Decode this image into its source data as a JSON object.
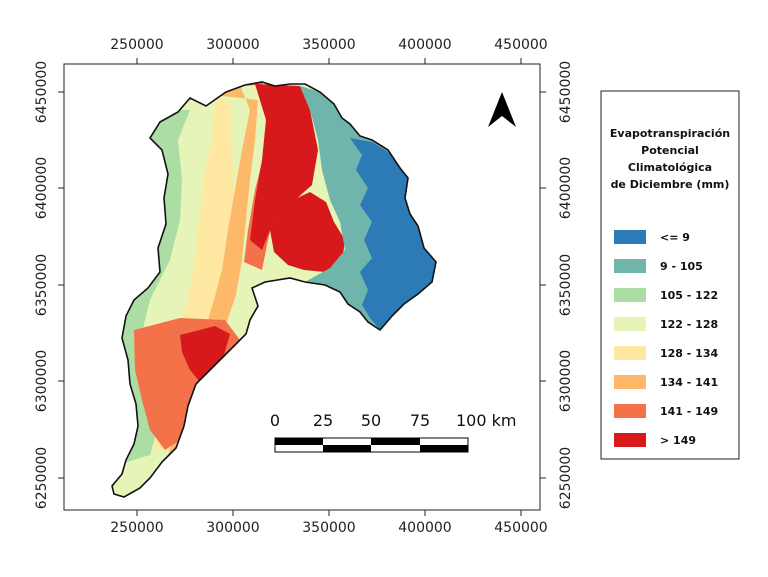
{
  "map": {
    "x_ticks": [
      "250000",
      "300000",
      "350000",
      "400000",
      "450000"
    ],
    "y_ticks": [
      "6450000",
      "6400000",
      "6350000",
      "6300000",
      "6250000"
    ],
    "north_arrow_icon": "north-arrow-icon"
  },
  "scale_bar": {
    "labels": [
      "0",
      "25",
      "50",
      "75",
      "100 km"
    ]
  },
  "legend": {
    "title_lines": [
      "Evapotranspiración",
      "Potencial",
      "Climatológica",
      "de Diciembre (mm)"
    ],
    "classes": [
      {
        "label": "<= 9",
        "color": "#2c7bb6"
      },
      {
        "label": "9 - 105",
        "color": "#6fb5ab"
      },
      {
        "label": "105 - 122",
        "color": "#abdda4"
      },
      {
        "label": "122 - 128",
        "color": "#e6f5b7"
      },
      {
        "label": "128 - 134",
        "color": "#fee8a2"
      },
      {
        "label": "134 - 141",
        "color": "#fdb86a"
      },
      {
        "label": "141 - 149",
        "color": "#f3724a"
      },
      {
        "label": "> 149",
        "color": "#d7191c"
      }
    ]
  }
}
